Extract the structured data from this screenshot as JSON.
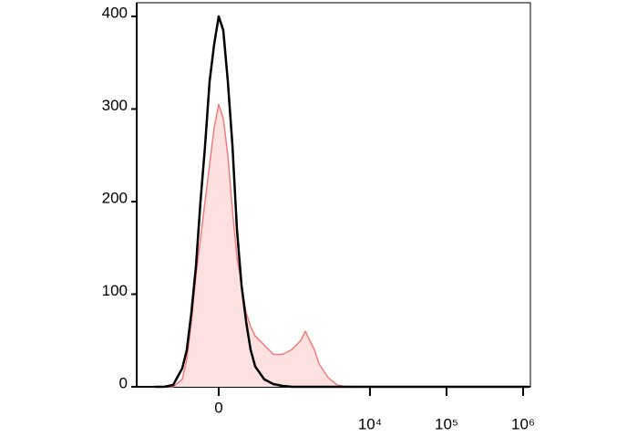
{
  "chart_data": {
    "type": "histogram-line",
    "xscale": "biexponential",
    "xlim": [
      -1240,
      1245000
    ],
    "ylim": [
      0,
      400
    ],
    "xticks": [
      0,
      {
        "value": 10000,
        "label": "10⁴"
      },
      {
        "value": 100000,
        "label": "10⁵"
      },
      {
        "value": 1000000,
        "label": "10⁶"
      }
    ],
    "yticks": [
      0,
      100,
      200,
      300,
      400
    ],
    "x": [
      -706,
      -528,
      -390,
      -282,
      -236,
      -195,
      -157,
      -122,
      -90,
      -59,
      -29,
      0,
      29,
      59,
      90,
      122,
      157,
      195,
      236,
      282,
      390,
      528,
      706,
      937,
      1240,
      1423,
      1635,
      1876,
      2154,
      2837,
      3733,
      4912,
      8500,
      33400,
      131000,
      1178000
    ],
    "series": [
      {
        "color": "#f07c7c",
        "fill_color": "#fde1e1",
        "filled": true,
        "values": [
          0,
          0,
          0,
          8,
          30,
          70,
          120,
          160,
          200,
          240,
          280,
          305,
          290,
          250,
          190,
          140,
          110,
          80,
          65,
          55,
          45,
          35,
          35,
          40,
          50,
          60,
          50,
          40,
          25,
          10,
          2,
          0,
          0,
          0,
          0,
          0
        ]
      },
      {
        "color": "#000000",
        "filled": false,
        "values": [
          0,
          0,
          2,
          20,
          40,
          80,
          130,
          200,
          260,
          330,
          370,
          400,
          385,
          330,
          260,
          170,
          110,
          70,
          40,
          22,
          8,
          3,
          1,
          0,
          0,
          0,
          0,
          0,
          0,
          0,
          0,
          0,
          0,
          0,
          0,
          0
        ]
      }
    ]
  }
}
